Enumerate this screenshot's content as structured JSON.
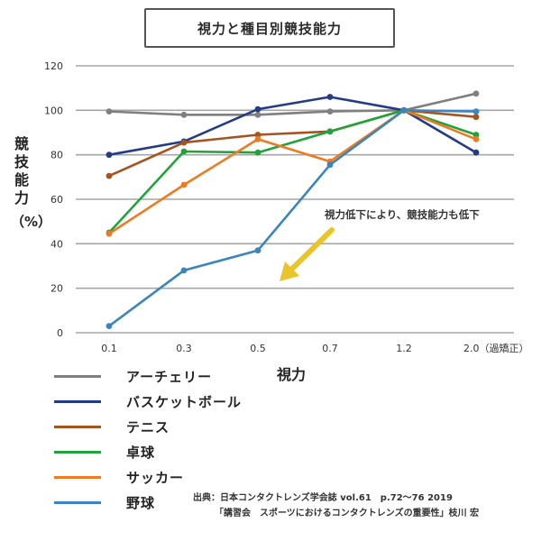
{
  "chart_data": {
    "type": "line",
    "title": "視力と種目別競技能力",
    "xlabel": "視力",
    "ylabel": "競技能力（%）",
    "categories": [
      "0.1",
      "0.3",
      "0.5",
      "0.7",
      "1.2",
      "2.0（過矯正）"
    ],
    "ylim": [
      0,
      120
    ],
    "yticks": [
      0,
      20,
      40,
      60,
      80,
      100,
      120
    ],
    "grid": true,
    "legend_position": "bottom-left",
    "series": [
      {
        "name": "アーチェリー",
        "color": "#7f7f7f",
        "values": [
          99.5,
          98,
          98,
          99.5,
          100,
          107.5
        ]
      },
      {
        "name": "バスケットボール",
        "color": "#243c85",
        "values": [
          80,
          86,
          100.5,
          106,
          100,
          81
        ]
      },
      {
        "name": "テニス",
        "color": "#a6541f",
        "values": [
          70.5,
          85.5,
          89,
          90.5,
          100,
          97
        ]
      },
      {
        "name": "卓球",
        "color": "#21a33a",
        "values": [
          45,
          81.5,
          81,
          90.5,
          100,
          89
        ]
      },
      {
        "name": "サッカー",
        "color": "#ee7b22",
        "values": [
          44.5,
          66.5,
          87,
          77,
          100,
          87
        ]
      },
      {
        "name": "野球",
        "color": "#3a85c0",
        "values": [
          3,
          28,
          37,
          75.5,
          100,
          99.5
        ]
      }
    ],
    "annotations": [
      {
        "text": "視力低下により、競技能力も低下",
        "arrow_color": "#e9c52a"
      }
    ]
  },
  "title": "視力と種目別競技能力",
  "axis": {
    "y_label_chars": [
      "競",
      "技",
      "能",
      "力"
    ],
    "y_label_unit": "（%）",
    "x_label": "視力"
  },
  "annotation_text": "視力低下により、競技能力も低下",
  "source": {
    "line1": "出典：日本コンタクトレンズ学会誌 vol.61　p.72〜76 2019",
    "line2": "「講習会　スポーツにおけるコンタクトレンズの重要性」枝川 宏"
  }
}
